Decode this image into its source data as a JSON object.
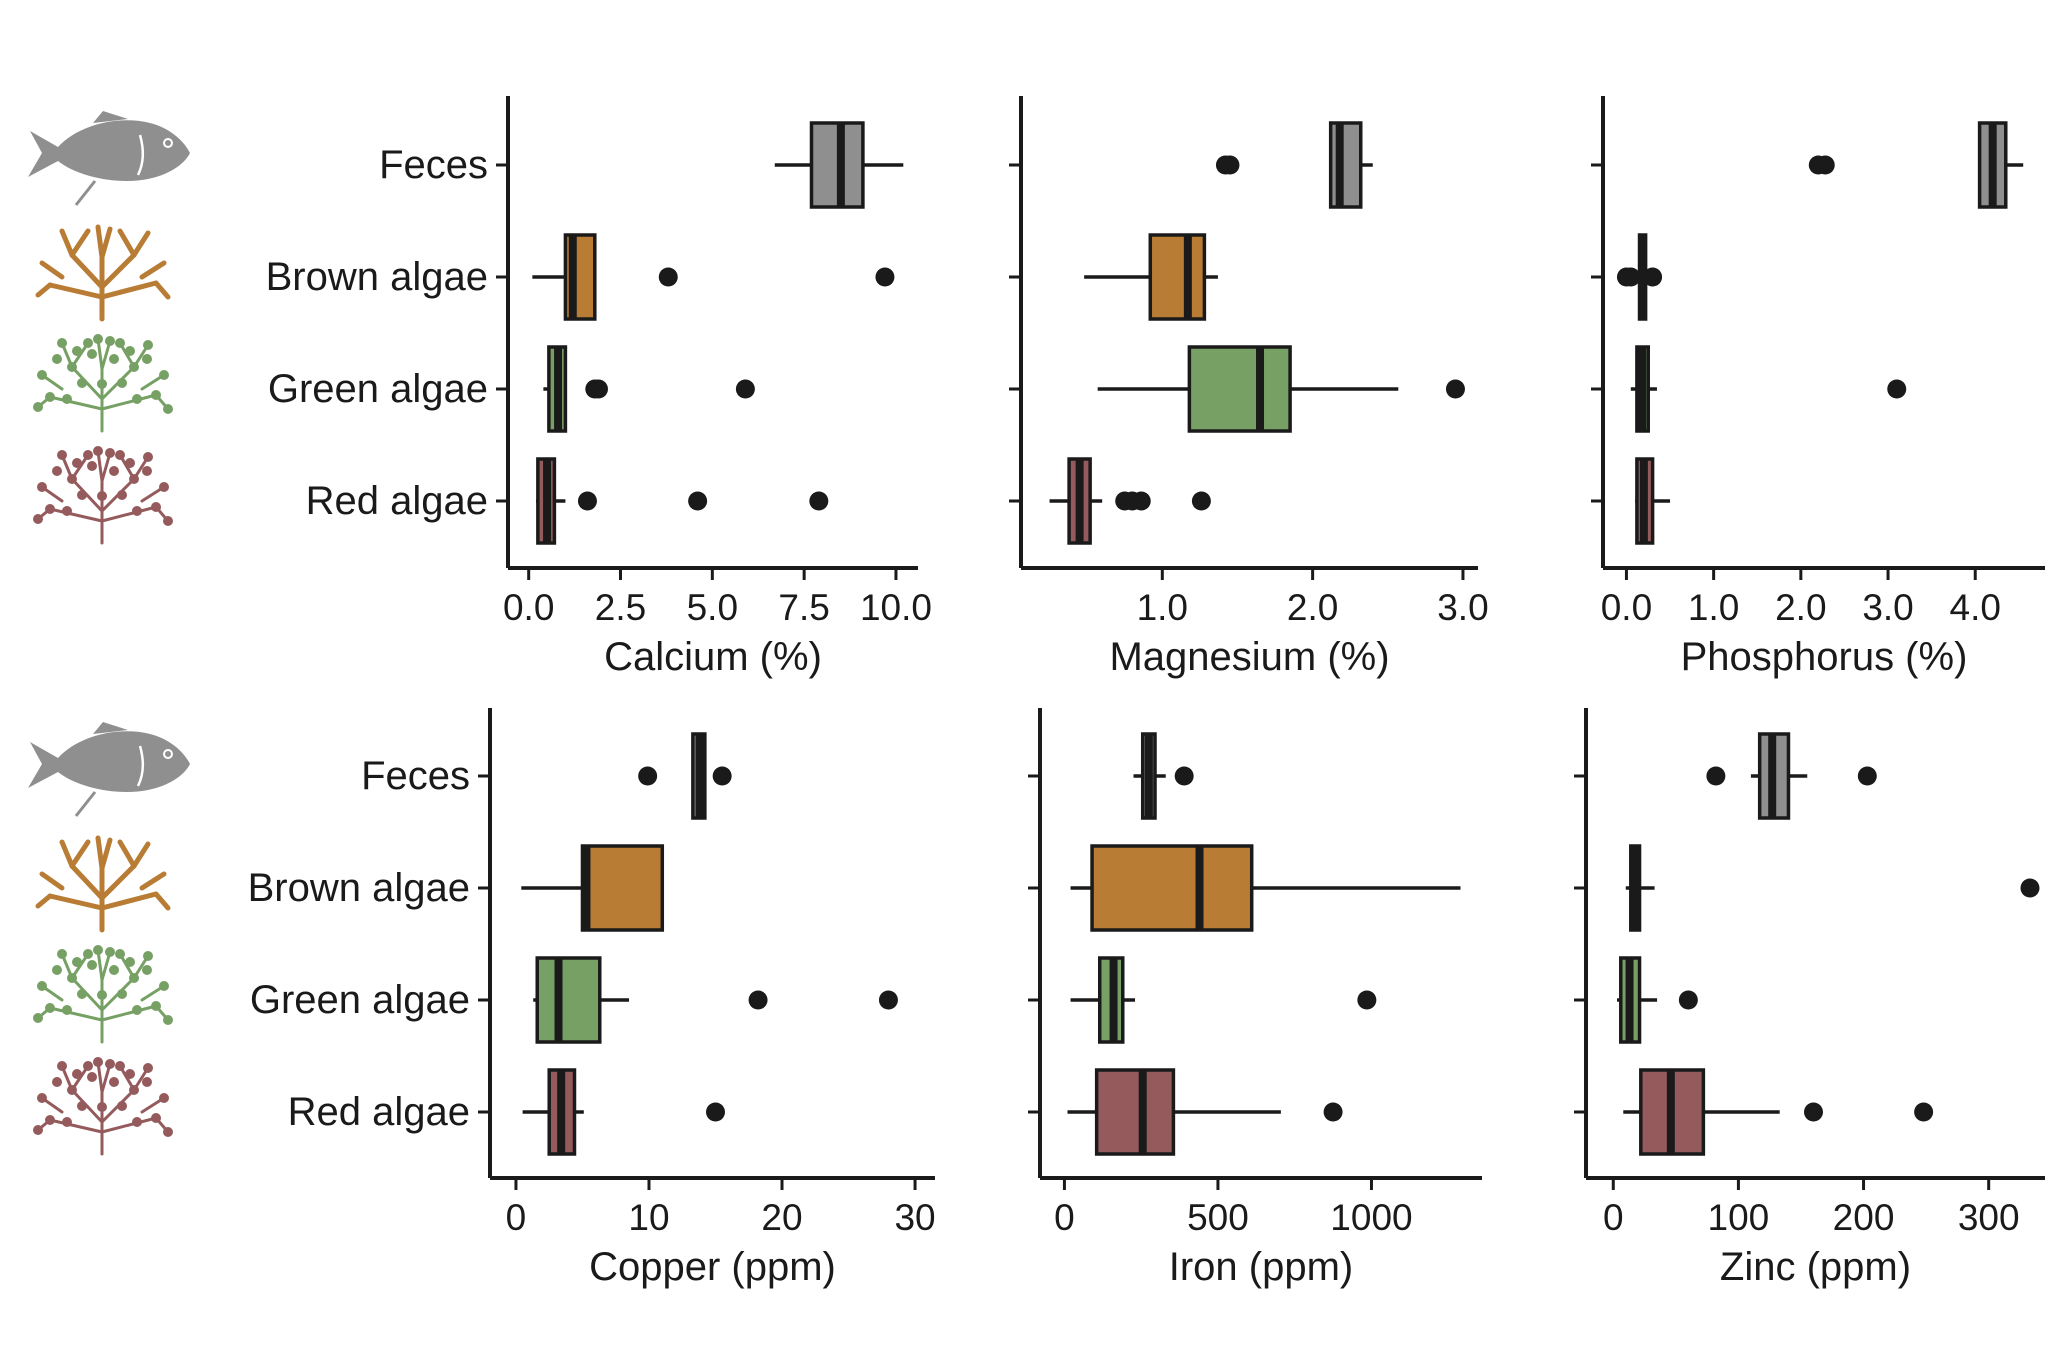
{
  "chart_data": [
    {
      "type": "boxplot",
      "xlabel": "Calcium (%)",
      "xlim": [
        -0.4,
        10.6
      ],
      "ticks": [
        0,
        2.5,
        5,
        7.5,
        10
      ],
      "tick_labels": [
        "0.0",
        "2.5",
        "5.0",
        "7.5",
        "10.0"
      ],
      "categories": [
        "Feces",
        "Brown algae",
        "Green algae",
        "Red algae"
      ],
      "boxes": [
        {
          "category": "Feces",
          "min": 6.7,
          "q1": 7.7,
          "median": 8.5,
          "q3": 9.1,
          "max": 10.2,
          "outliers": []
        },
        {
          "category": "Brown algae",
          "min": 0.1,
          "q1": 1.0,
          "median": 1.2,
          "q3": 1.8,
          "max": 1.8,
          "outliers": [
            3.8,
            9.7
          ]
        },
        {
          "category": "Green algae",
          "min": 0.4,
          "q1": 0.55,
          "median": 0.8,
          "q3": 1.0,
          "max": 1.0,
          "outliers": [
            1.8,
            1.9,
            5.9
          ]
        },
        {
          "category": "Red algae",
          "min": 0.2,
          "q1": 0.25,
          "median": 0.5,
          "q3": 0.7,
          "max": 1.0,
          "outliers": [
            1.6,
            4.6,
            7.9
          ]
        }
      ]
    },
    {
      "type": "boxplot",
      "xlabel": "Magnesium (%)",
      "xlim": [
        0.1,
        3.1
      ],
      "ticks": [
        1,
        2,
        3
      ],
      "tick_labels": [
        "1.0",
        "2.0",
        "3.0"
      ],
      "categories": [
        "Feces",
        "Brown algae",
        "Green algae",
        "Red algae"
      ],
      "boxes": [
        {
          "category": "Feces",
          "min": 2.12,
          "q1": 2.12,
          "median": 2.18,
          "q3": 2.32,
          "max": 2.4,
          "outliers": [
            1.42,
            1.45
          ]
        },
        {
          "category": "Brown algae",
          "min": 0.48,
          "q1": 0.92,
          "median": 1.17,
          "q3": 1.28,
          "max": 1.37,
          "outliers": []
        },
        {
          "category": "Green algae",
          "min": 0.57,
          "q1": 1.18,
          "median": 1.65,
          "q3": 1.85,
          "max": 2.57,
          "outliers": [
            2.95
          ]
        },
        {
          "category": "Red algae",
          "min": 0.25,
          "q1": 0.38,
          "median": 0.45,
          "q3": 0.52,
          "max": 0.6,
          "outliers": [
            0.75,
            0.8,
            0.86,
            1.26
          ]
        }
      ]
    },
    {
      "type": "boxplot",
      "xlabel": "Phosphorus (%)",
      "xlim": [
        -0.2,
        4.8
      ],
      "ticks": [
        0,
        1,
        2,
        3,
        4
      ],
      "tick_labels": [
        "0.0",
        "1.0",
        "2.0",
        "3.0",
        "4.0"
      ],
      "categories": [
        "Feces",
        "Brown algae",
        "Green algae",
        "Red algae"
      ],
      "boxes": [
        {
          "category": "Feces",
          "min": 4.05,
          "q1": 4.05,
          "median": 4.2,
          "q3": 4.35,
          "max": 4.55,
          "outliers": [
            2.2,
            2.28
          ]
        },
        {
          "category": "Brown algae",
          "min": 0.15,
          "q1": 0.15,
          "median": 0.18,
          "q3": 0.22,
          "max": 0.22,
          "outliers": [
            0.0,
            0.05,
            0.3
          ]
        },
        {
          "category": "Green algae",
          "min": 0.05,
          "q1": 0.12,
          "median": 0.18,
          "q3": 0.25,
          "max": 0.35,
          "outliers": [
            3.1
          ]
        },
        {
          "category": "Red algae",
          "min": 0.1,
          "q1": 0.12,
          "median": 0.2,
          "q3": 0.3,
          "max": 0.5,
          "outliers": []
        }
      ]
    },
    {
      "type": "boxplot",
      "xlabel": "Copper (ppm)",
      "xlim": [
        -1.5,
        31.5
      ],
      "ticks": [
        0,
        10,
        20,
        30
      ],
      "tick_labels": [
        "0",
        "10",
        "20",
        "30"
      ],
      "categories": [
        "Feces",
        "Brown algae",
        "Green algae",
        "Red algae"
      ],
      "boxes": [
        {
          "category": "Feces",
          "min": 13.3,
          "q1": 13.3,
          "median": 13.8,
          "q3": 14.2,
          "max": 14.2,
          "outliers": [
            9.9,
            15.5
          ]
        },
        {
          "category": "Brown algae",
          "min": 0.4,
          "q1": 5.0,
          "median": 5.3,
          "q3": 11.0,
          "max": 11.0,
          "outliers": []
        },
        {
          "category": "Green algae",
          "min": 1.3,
          "q1": 1.6,
          "median": 3.2,
          "q3": 6.3,
          "max": 8.5,
          "outliers": [
            18.2,
            28.0
          ]
        },
        {
          "category": "Red algae",
          "min": 0.5,
          "q1": 2.5,
          "median": 3.4,
          "q3": 4.4,
          "max": 5.1,
          "outliers": [
            15.0
          ]
        }
      ]
    },
    {
      "type": "boxplot",
      "xlabel": "Iron (ppm)",
      "xlim": [
        -60,
        1360
      ],
      "ticks": [
        0,
        500,
        1000
      ],
      "tick_labels": [
        "0",
        "500",
        "1000"
      ],
      "categories": [
        "Feces",
        "Brown algae",
        "Green algae",
        "Red algae"
      ],
      "boxes": [
        {
          "category": "Feces",
          "min": 225,
          "q1": 255,
          "median": 275,
          "q3": 295,
          "max": 330,
          "outliers": [
            390
          ]
        },
        {
          "category": "Brown algae",
          "min": 20,
          "q1": 90,
          "median": 440,
          "q3": 610,
          "max": 1290,
          "outliers": []
        },
        {
          "category": "Green algae",
          "min": 20,
          "q1": 115,
          "median": 160,
          "q3": 190,
          "max": 230,
          "outliers": [
            985
          ]
        },
        {
          "category": "Red algae",
          "min": 10,
          "q1": 105,
          "median": 255,
          "q3": 355,
          "max": 705,
          "outliers": [
            875
          ]
        }
      ]
    },
    {
      "type": "boxplot",
      "xlabel": "Zinc (ppm)",
      "xlim": [
        -17,
        345
      ],
      "ticks": [
        0,
        100,
        200,
        300
      ],
      "tick_labels": [
        "0",
        "100",
        "200",
        "300"
      ],
      "categories": [
        "Feces",
        "Brown algae",
        "Green algae",
        "Red algae"
      ],
      "boxes": [
        {
          "category": "Feces",
          "min": 110,
          "q1": 117,
          "median": 127,
          "q3": 140,
          "max": 155,
          "outliers": [
            82,
            203
          ]
        },
        {
          "category": "Brown algae",
          "min": 10,
          "q1": 14,
          "median": 17,
          "q3": 21,
          "max": 33,
          "outliers": [
            333
          ]
        },
        {
          "category": "Green algae",
          "min": 3,
          "q1": 6,
          "median": 13,
          "q3": 21,
          "max": 35,
          "outliers": [
            60
          ]
        },
        {
          "category": "Red algae",
          "min": 8,
          "q1": 22,
          "median": 46,
          "q3": 72,
          "max": 133,
          "outliers": [
            160,
            248
          ]
        }
      ]
    }
  ],
  "colors": {
    "Feces": "#8f8f8f",
    "Brown algae": "#b87c35",
    "Green algae": "#76a064",
    "Red algae": "#945a5c",
    "axis": "#1a1a1a"
  },
  "icons": {
    "Feces": "fish-icon",
    "Brown algae": "brown-seaweed-icon",
    "Green algae": "green-seaweed-icon",
    "Red algae": "red-seaweed-icon"
  }
}
